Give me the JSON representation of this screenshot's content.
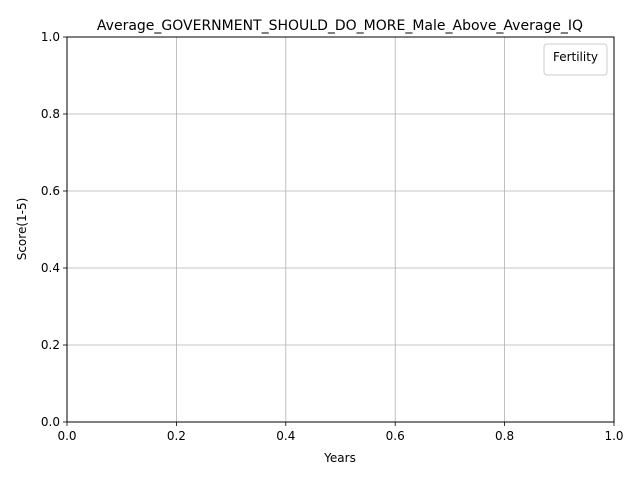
{
  "chart_data": {
    "type": "line",
    "title": "Average_GOVERNMENT_SHOULD_DO_MORE_Male_Above_Average_IQ",
    "xlabel": "Years",
    "ylabel": "Score(1-5)",
    "xlim": [
      0.0,
      1.0
    ],
    "ylim": [
      0.0,
      1.0
    ],
    "x_ticks": [
      "0.0",
      "0.2",
      "0.4",
      "0.6",
      "0.8",
      "1.0"
    ],
    "y_ticks": [
      "0.0",
      "0.2",
      "0.4",
      "0.6",
      "0.8",
      "1.0"
    ],
    "grid": true,
    "legend": {
      "title": "Fertility",
      "placement": "top-right",
      "entries": []
    },
    "series": []
  }
}
